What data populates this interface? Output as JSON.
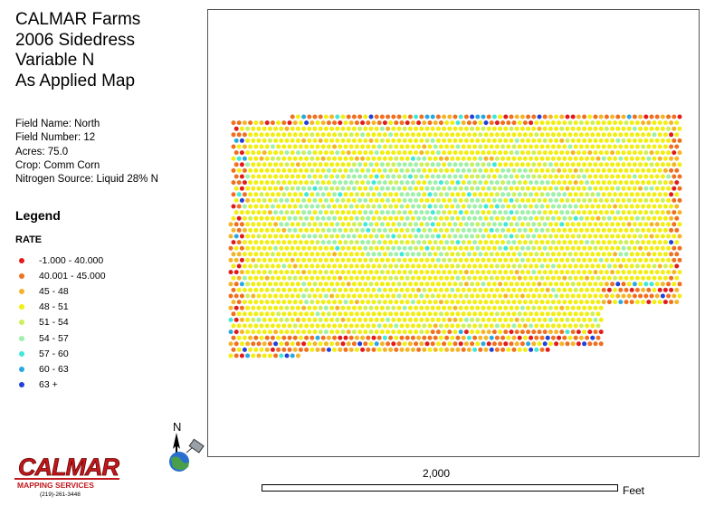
{
  "title_lines": [
    "CALMAR Farms",
    "2006 Sidedress",
    "Variable N",
    "As Applied Map"
  ],
  "field_info": [
    "Field Name: North",
    "Field Number: 12",
    "Acres: 75.0",
    "Crop: Comm Corn",
    "Nitrogen Source: Liquid 28% N"
  ],
  "legend": {
    "title": "Legend",
    "attribute": "RATE",
    "classes": [
      {
        "label": "-1.000 - 40.000",
        "color": "#e31a1c"
      },
      {
        "label": "40.001 - 45.000",
        "color": "#f07020"
      },
      {
        "label": "45 - 48",
        "color": "#f5b428"
      },
      {
        "label": "48 - 51",
        "color": "#f2ee12"
      },
      {
        "label": "51 - 54",
        "color": "#cdf05a"
      },
      {
        "label": "54 - 57",
        "color": "#9ff0a8"
      },
      {
        "label": "57 - 60",
        "color": "#3fe8d8"
      },
      {
        "label": "60 - 63",
        "color": "#2aa8e0"
      },
      {
        "label": "63 +",
        "color": "#2040d8"
      }
    ]
  },
  "scale_bar": {
    "value_label": "2,000",
    "unit": "Feet"
  },
  "north_arrow": {
    "letter": "N",
    "icon": "north-arrow-icon"
  },
  "logo": {
    "name": "CALMAR",
    "tagline": "MAPPING SERVICES",
    "phone": "(219)-261-3448"
  }
}
